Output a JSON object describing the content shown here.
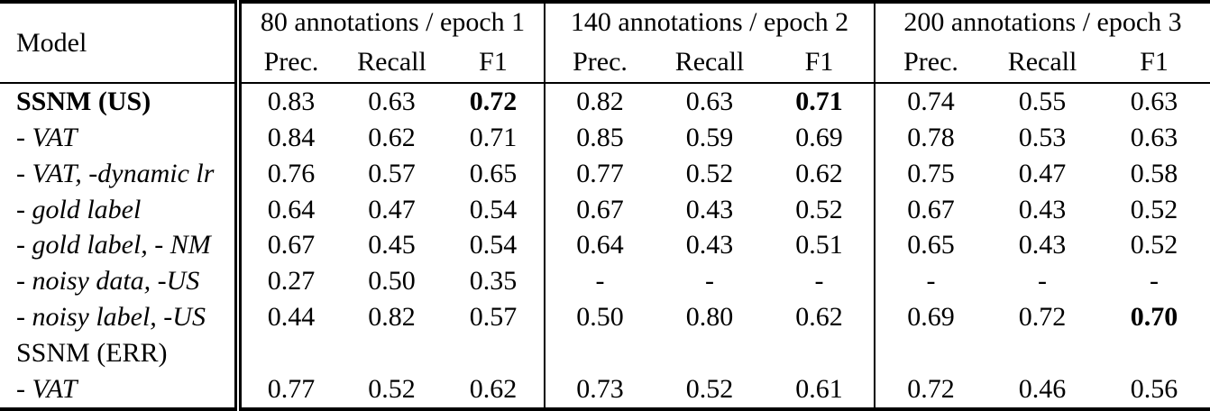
{
  "table": {
    "model_header": "Model",
    "groups": [
      {
        "title": "80 annotations / epoch 1",
        "subheaders": [
          "Prec.",
          "Recall",
          "F1"
        ]
      },
      {
        "title": "140 annotations / epoch 2",
        "subheaders": [
          "Prec.",
          "Recall",
          "F1"
        ]
      },
      {
        "title": "200 annotations / epoch 3",
        "subheaders": [
          "Prec.",
          "Recall",
          "F1"
        ]
      }
    ],
    "rows": [
      {
        "label": "SSNM (US)",
        "style": "bold",
        "values": [
          "0.83",
          "0.63",
          "0.72",
          "0.82",
          "0.63",
          "0.71",
          "0.74",
          "0.55",
          "0.63"
        ],
        "bold_cols": [
          2,
          5
        ]
      },
      {
        "label": "- VAT",
        "style": "italic",
        "values": [
          "0.84",
          "0.62",
          "0.71",
          "0.85",
          "0.59",
          "0.69",
          "0.78",
          "0.53",
          "0.63"
        ],
        "bold_cols": []
      },
      {
        "label": "- VAT, -dynamic lr",
        "style": "italic",
        "values": [
          "0.76",
          "0.57",
          "0.65",
          "0.77",
          "0.52",
          "0.62",
          "0.75",
          "0.47",
          "0.58"
        ],
        "bold_cols": []
      },
      {
        "label": "- gold label",
        "style": "italic",
        "values": [
          "0.64",
          "0.47",
          "0.54",
          "0.67",
          "0.43",
          "0.52",
          "0.67",
          "0.43",
          "0.52"
        ],
        "bold_cols": []
      },
      {
        "label": "- gold label, - NM",
        "style": "italic",
        "values": [
          "0.67",
          "0.45",
          "0.54",
          "0.64",
          "0.43",
          "0.51",
          "0.65",
          "0.43",
          "0.52"
        ],
        "bold_cols": []
      },
      {
        "label": "- noisy data, -US",
        "style": "italic",
        "values": [
          "0.27",
          "0.50",
          "0.35",
          "-",
          "-",
          "-",
          "-",
          "-",
          "-"
        ],
        "bold_cols": []
      },
      {
        "label": "- noisy label, -US",
        "style": "italic",
        "values": [
          "0.44",
          "0.82",
          "0.57",
          "0.50",
          "0.80",
          "0.62",
          "0.69",
          "0.72",
          "0.70"
        ],
        "bold_cols": [
          8
        ]
      },
      {
        "label": "SSNM (ERR)",
        "style": "normal",
        "values": [
          "",
          "",
          "",
          "",
          "",
          "",
          "",
          "",
          ""
        ],
        "bold_cols": []
      },
      {
        "label": "- VAT",
        "style": "italic",
        "values": [
          "0.77",
          "0.52",
          "0.62",
          "0.73",
          "0.52",
          "0.61",
          "0.72",
          "0.46",
          "0.56"
        ],
        "bold_cols": []
      }
    ]
  }
}
